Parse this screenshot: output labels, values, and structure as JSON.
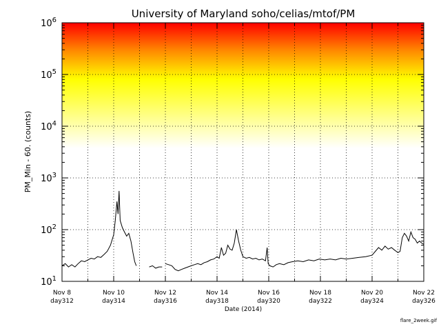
{
  "chart_data": {
    "type": "line",
    "title": "University of Maryland  soho/celias/mtof/PM",
    "xlabel": "Date (2014)",
    "ylabel": "PM_Min  -  60. (counts)",
    "yscale": "log",
    "ylim": [
      10,
      1000000
    ],
    "xlim": [
      "2014-11-08",
      "2014-11-22"
    ],
    "grid": true,
    "background": {
      "gradient": "red at 10^6 through orange to yellow, fading to white near 10^3.6",
      "colors": [
        "#ff0000",
        "#ff8800",
        "#ffff00",
        "#ffffff"
      ]
    },
    "line_color": "#000000",
    "y_ticks": [
      {
        "base": "10",
        "exp": "1",
        "value": 10
      },
      {
        "base": "10",
        "exp": "2",
        "value": 100
      },
      {
        "base": "10",
        "exp": "3",
        "value": 1000
      },
      {
        "base": "10",
        "exp": "4",
        "value": 10000
      },
      {
        "base": "10",
        "exp": "5",
        "value": 100000
      },
      {
        "base": "10",
        "exp": "6",
        "value": 1000000
      }
    ],
    "x_ticks": [
      {
        "date": "Nov 8",
        "doy": "day312",
        "x": "2014-11-08"
      },
      {
        "date": "Nov 10",
        "doy": "day314",
        "x": "2014-11-10"
      },
      {
        "date": "Nov 12",
        "doy": "day316",
        "x": "2014-11-12"
      },
      {
        "date": "Nov 14",
        "doy": "day318",
        "x": "2014-11-14"
      },
      {
        "date": "Nov 16",
        "doy": "day320",
        "x": "2014-11-16"
      },
      {
        "date": "Nov 18",
        "doy": "day322",
        "x": "2014-11-18"
      },
      {
        "date": "Nov 20",
        "doy": "day324",
        "x": "2014-11-20"
      },
      {
        "date": "Nov 22",
        "doy": "day326",
        "x": "2014-11-22"
      }
    ],
    "series": [
      {
        "gaps_after": [
          "2014-11-10T21:00",
          "2014-11-11T21:00"
        ],
        "points": [
          [
            "2014-11-08T00:00",
            20
          ],
          [
            "2014-11-08T03:00",
            22
          ],
          [
            "2014-11-08T06:00",
            19
          ],
          [
            "2014-11-08T09:00",
            21
          ],
          [
            "2014-11-08T12:00",
            19
          ],
          [
            "2014-11-08T15:00",
            22
          ],
          [
            "2014-11-08T18:00",
            25
          ],
          [
            "2014-11-08T21:00",
            24
          ],
          [
            "2014-11-09T00:00",
            26
          ],
          [
            "2014-11-09T03:00",
            28
          ],
          [
            "2014-11-09T06:00",
            27
          ],
          [
            "2014-11-09T09:00",
            30
          ],
          [
            "2014-11-09T12:00",
            29
          ],
          [
            "2014-11-09T15:00",
            33
          ],
          [
            "2014-11-09T18:00",
            38
          ],
          [
            "2014-11-09T21:00",
            50
          ],
          [
            "2014-11-10T00:00",
            80
          ],
          [
            "2014-11-10T01:30",
            150
          ],
          [
            "2014-11-10T03:00",
            350
          ],
          [
            "2014-11-10T04:00",
            200
          ],
          [
            "2014-11-10T05:00",
            560
          ],
          [
            "2014-11-10T06:00",
            150
          ],
          [
            "2014-11-10T08:00",
            110
          ],
          [
            "2014-11-10T10:00",
            90
          ],
          [
            "2014-11-10T12:00",
            75
          ],
          [
            "2014-11-10T14:00",
            85
          ],
          [
            "2014-11-10T16:00",
            60
          ],
          [
            "2014-11-10T18:00",
            35
          ],
          [
            "2014-11-10T19:30",
            24
          ],
          [
            "2014-11-10T21:00",
            20
          ],
          [
            "2014-11-11T09:00",
            19
          ],
          [
            "2014-11-11T12:00",
            20
          ],
          [
            "2014-11-11T15:00",
            18
          ],
          [
            "2014-11-11T18:00",
            19
          ],
          [
            "2014-11-11T21:00",
            19
          ],
          [
            "2014-11-12T00:00",
            22
          ],
          [
            "2014-11-12T03:00",
            21
          ],
          [
            "2014-11-12T06:00",
            20
          ],
          [
            "2014-11-12T09:00",
            17
          ],
          [
            "2014-11-12T12:00",
            16
          ],
          [
            "2014-11-12T15:00",
            17
          ],
          [
            "2014-11-12T18:00",
            18
          ],
          [
            "2014-11-12T21:00",
            19
          ],
          [
            "2014-11-13T00:00",
            20
          ],
          [
            "2014-11-13T03:00",
            21
          ],
          [
            "2014-11-13T06:00",
            22
          ],
          [
            "2014-11-13T09:00",
            21
          ],
          [
            "2014-11-13T12:00",
            23
          ],
          [
            "2014-11-13T15:00",
            24
          ],
          [
            "2014-11-13T18:00",
            26
          ],
          [
            "2014-11-13T21:00",
            27
          ],
          [
            "2014-11-14T00:00",
            30
          ],
          [
            "2014-11-14T02:00",
            28
          ],
          [
            "2014-11-14T04:00",
            45
          ],
          [
            "2014-11-14T06:00",
            32
          ],
          [
            "2014-11-14T08:00",
            35
          ],
          [
            "2014-11-14T10:00",
            50
          ],
          [
            "2014-11-14T12:00",
            42
          ],
          [
            "2014-11-14T14:00",
            40
          ],
          [
            "2014-11-14T16:00",
            55
          ],
          [
            "2014-11-14T18:00",
            100
          ],
          [
            "2014-11-14T20:00",
            60
          ],
          [
            "2014-11-14T22:00",
            40
          ],
          [
            "2014-11-15T00:00",
            30
          ],
          [
            "2014-11-15T03:00",
            28
          ],
          [
            "2014-11-15T06:00",
            29
          ],
          [
            "2014-11-15T09:00",
            27
          ],
          [
            "2014-11-15T12:00",
            28
          ],
          [
            "2014-11-15T15:00",
            26
          ],
          [
            "2014-11-15T18:00",
            27
          ],
          [
            "2014-11-15T21:00",
            25
          ],
          [
            "2014-11-15T22:30",
            45
          ],
          [
            "2014-11-15T23:30",
            22
          ],
          [
            "2014-11-16T01:00",
            20
          ],
          [
            "2014-11-16T04:00",
            19
          ],
          [
            "2014-11-16T07:00",
            21
          ],
          [
            "2014-11-16T10:00",
            22
          ],
          [
            "2014-11-16T14:00",
            21
          ],
          [
            "2014-11-16T18:00",
            23
          ],
          [
            "2014-11-16T22:00",
            24
          ],
          [
            "2014-11-17T03:00",
            25
          ],
          [
            "2014-11-17T08:00",
            24
          ],
          [
            "2014-11-17T13:00",
            26
          ],
          [
            "2014-11-17T18:00",
            25
          ],
          [
            "2014-11-17T23:00",
            27
          ],
          [
            "2014-11-18T04:00",
            26
          ],
          [
            "2014-11-18T09:00",
            27
          ],
          [
            "2014-11-18T14:00",
            26
          ],
          [
            "2014-11-18T19:00",
            28
          ],
          [
            "2014-11-19T00:00",
            27
          ],
          [
            "2014-11-19T06:00",
            28
          ],
          [
            "2014-11-19T12:00",
            29
          ],
          [
            "2014-11-19T18:00",
            30
          ],
          [
            "2014-11-20T00:00",
            32
          ],
          [
            "2014-11-20T03:00",
            38
          ],
          [
            "2014-11-20T06:00",
            45
          ],
          [
            "2014-11-20T09:00",
            40
          ],
          [
            "2014-11-20T12:00",
            48
          ],
          [
            "2014-11-20T15:00",
            42
          ],
          [
            "2014-11-20T18:00",
            45
          ],
          [
            "2014-11-20T21:00",
            40
          ],
          [
            "2014-11-21T00:00",
            36
          ],
          [
            "2014-11-21T02:00",
            38
          ],
          [
            "2014-11-21T04:00",
            70
          ],
          [
            "2014-11-21T06:00",
            85
          ],
          [
            "2014-11-21T08:00",
            75
          ],
          [
            "2014-11-21T10:00",
            60
          ],
          [
            "2014-11-21T12:00",
            90
          ],
          [
            "2014-11-21T14:00",
            70
          ],
          [
            "2014-11-21T16:00",
            65
          ],
          [
            "2014-11-21T18:00",
            55
          ],
          [
            "2014-11-21T20:00",
            60
          ],
          [
            "2014-11-21T22:00",
            55
          ],
          [
            "2014-11-22T00:00",
            52
          ]
        ]
      }
    ]
  },
  "footer": {
    "filename": "flare_2week.gif"
  }
}
